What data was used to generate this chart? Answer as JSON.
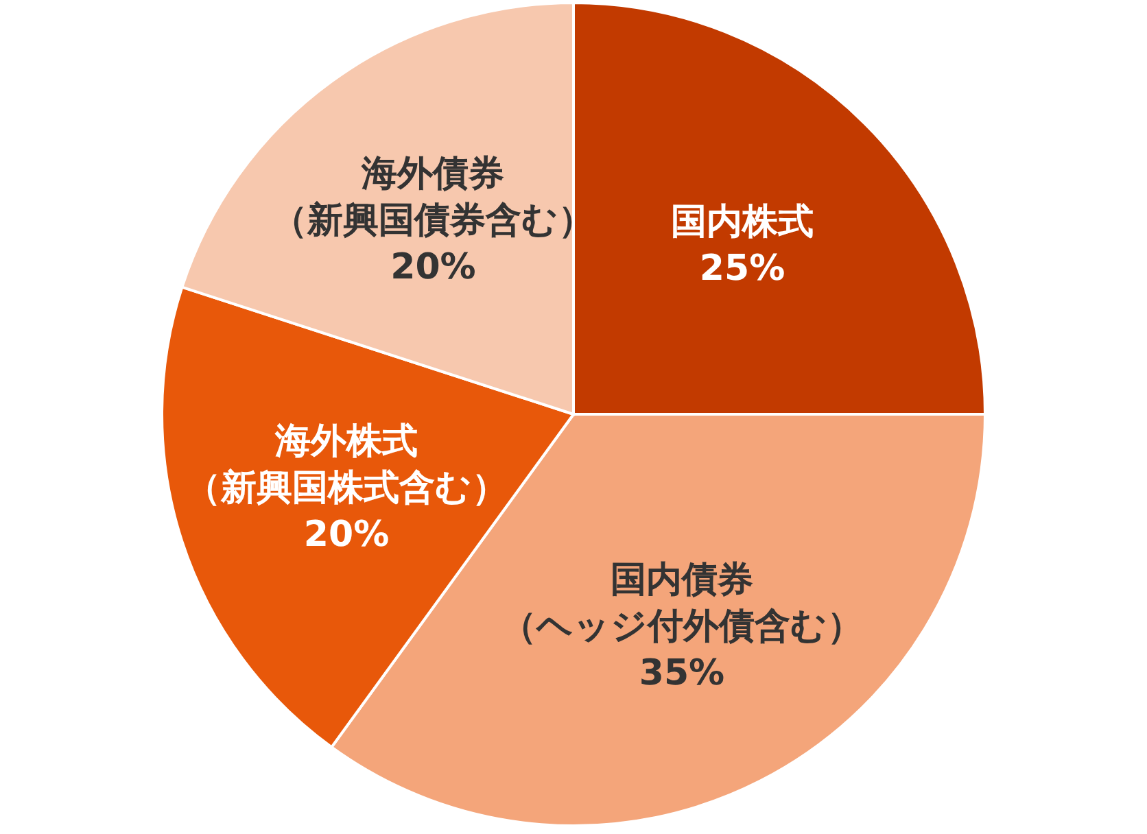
{
  "chart_data": {
    "type": "pie",
    "categories": [
      "国内株式",
      "国内債券（ヘッジ付外債含む）",
      "海外株式（新興国株式含む）",
      "海外債券（新興国債券含む）"
    ],
    "values": [
      25,
      35,
      20,
      20
    ],
    "value_labels": [
      "25%",
      "35%",
      "20%",
      "20%"
    ],
    "colors": [
      "#c23a00",
      "#f4a57a",
      "#e8580a",
      "#f7c8ae"
    ]
  }
}
